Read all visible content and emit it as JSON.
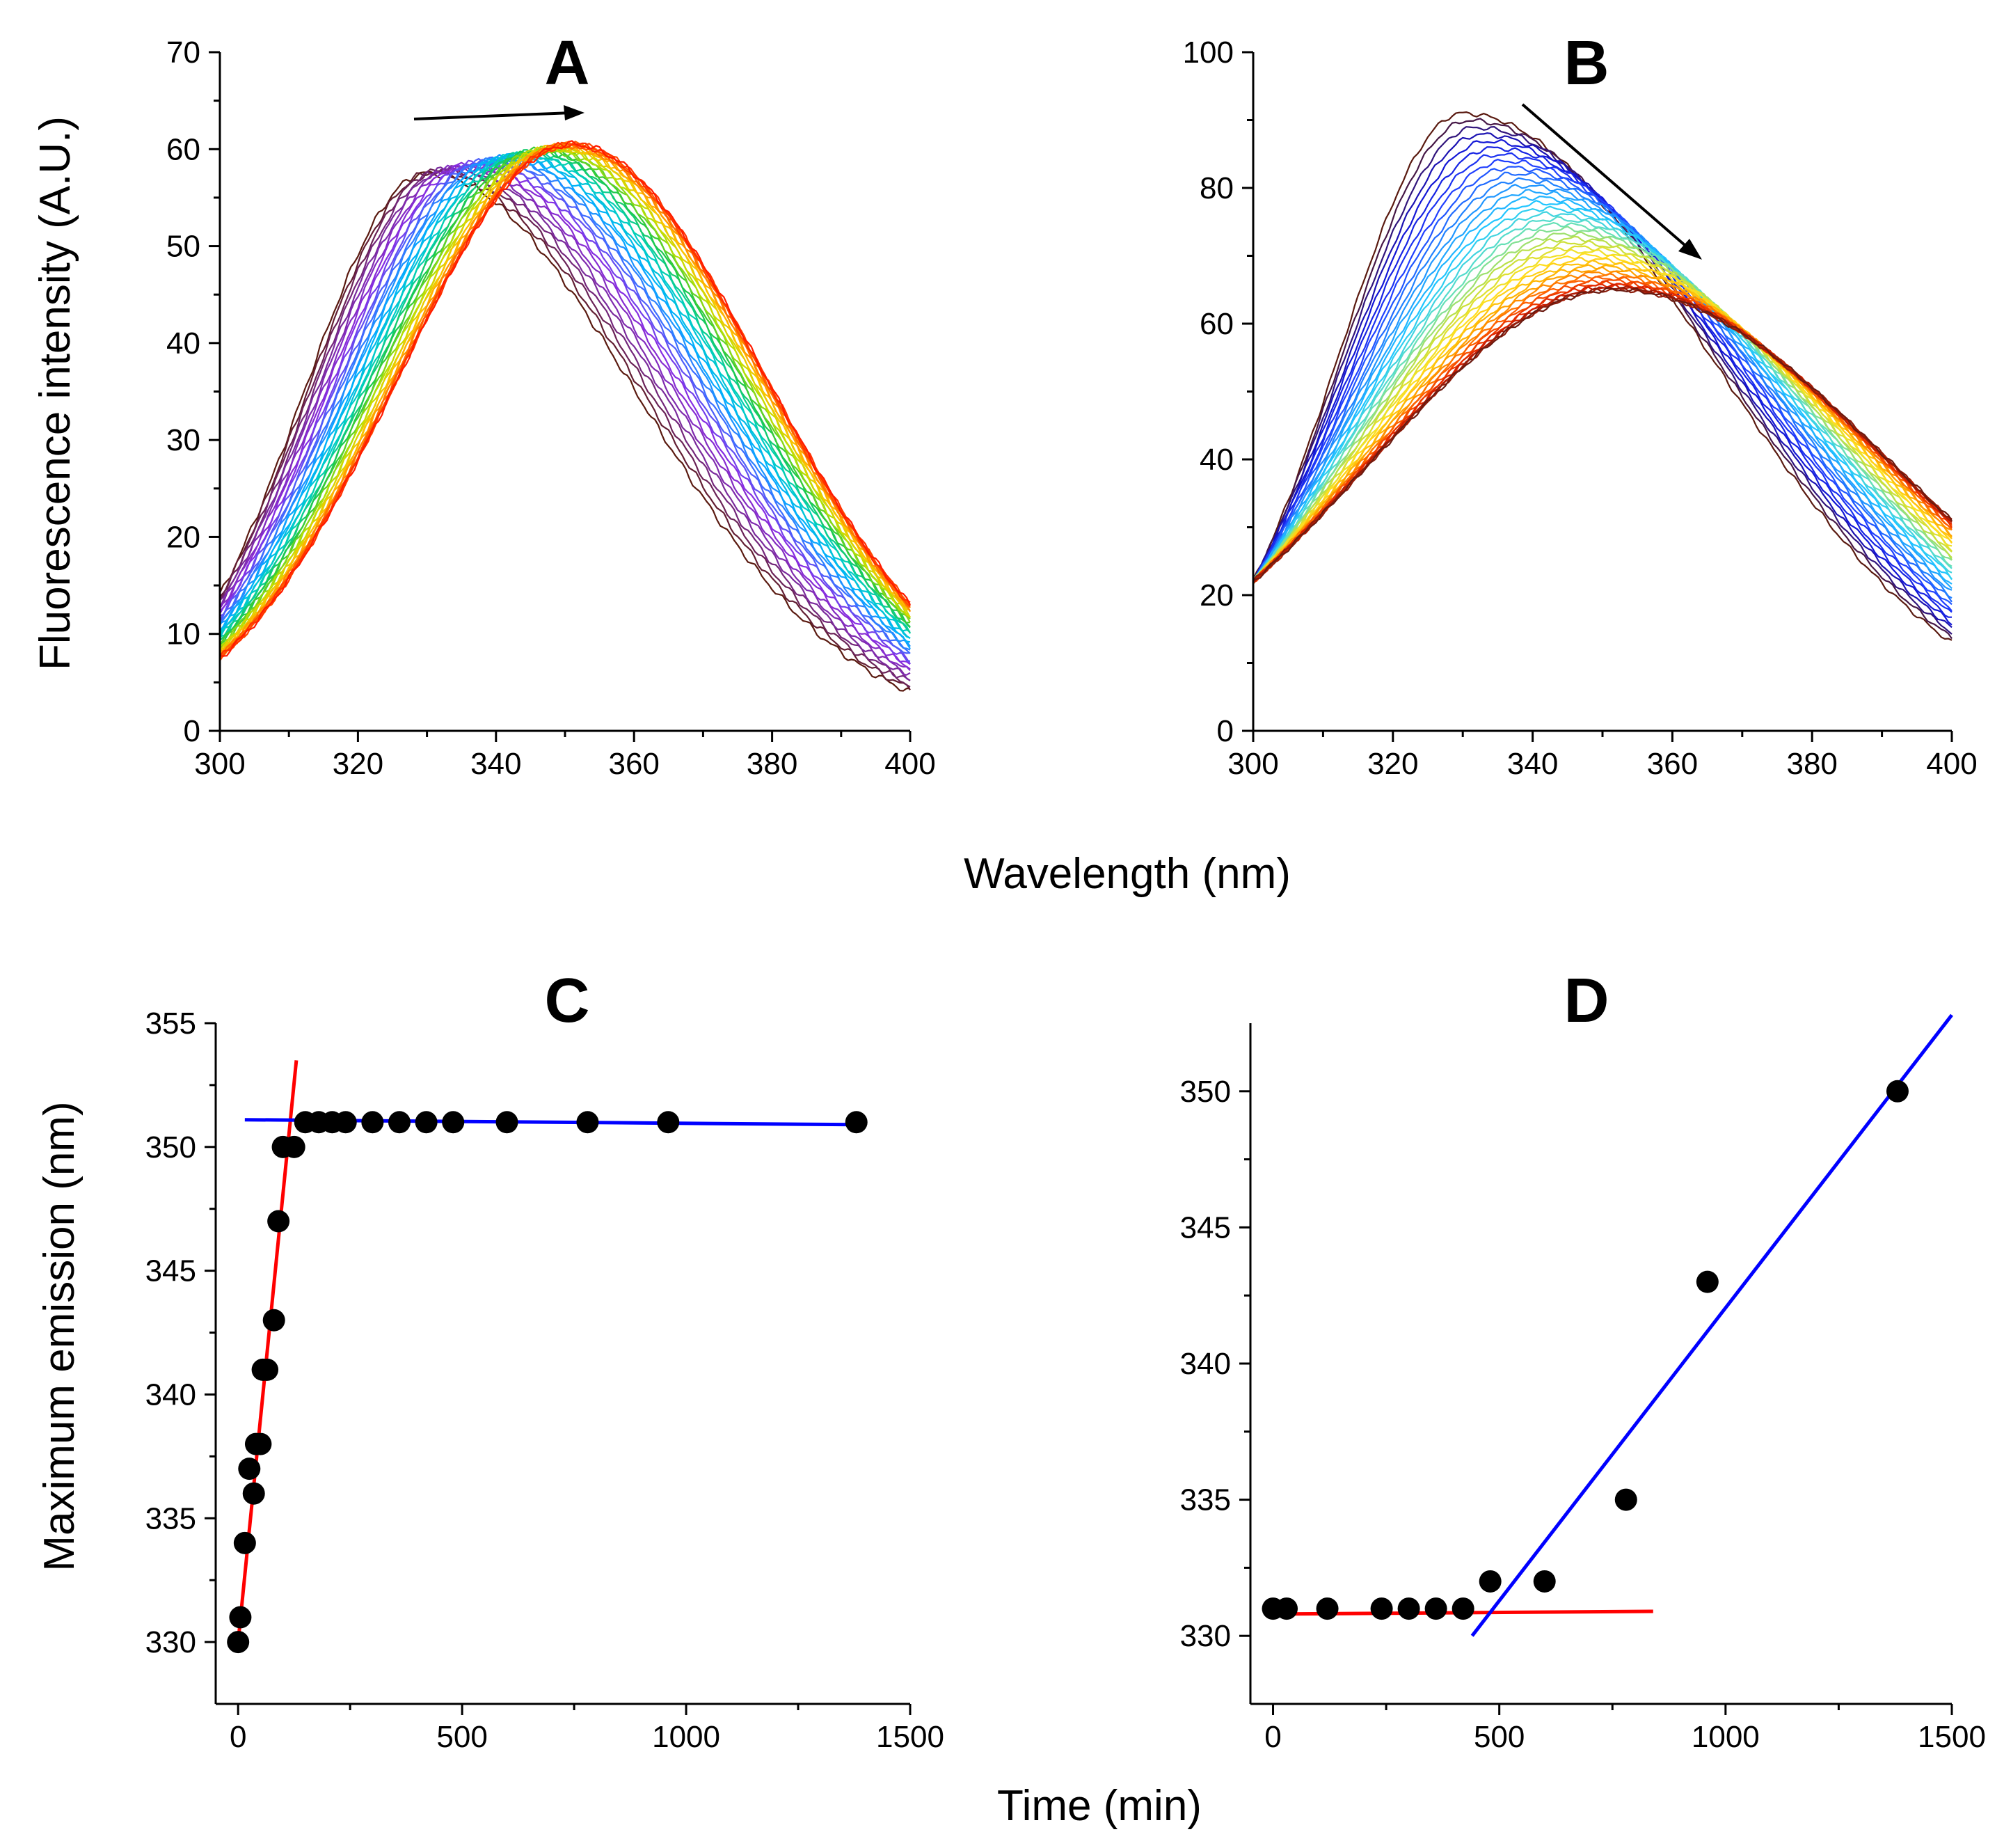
{
  "figure": {
    "shared_xlabel_top": "Wavelength (nm)",
    "shared_xlabel_bottom": "Time (min)"
  },
  "chart_data": [
    {
      "id": "A",
      "type": "line",
      "title": "A",
      "xlabel": "Wavelength (nm)",
      "ylabel": "Fluorescence intensity (A.U.)",
      "xlim": [
        300,
        400
      ],
      "ylim": [
        0,
        70
      ],
      "xticks": [
        300,
        320,
        340,
        360,
        380,
        400
      ],
      "yticks": [
        0,
        10,
        20,
        30,
        40,
        50,
        60,
        70
      ],
      "annotation": "arrow pointing toward longer wavelength (red shift)",
      "series_count": 40,
      "series_model": {
        "first": {
          "peak_nm": 330,
          "peak_value": 57.5,
          "color": "#5a1a10"
        },
        "last": {
          "peak_nm": 351,
          "peak_value": 60.5,
          "color": "#ff1a00"
        },
        "color_order": [
          "#5a1a10",
          "#7a2a9a",
          "#8a2be2",
          "#4169ff",
          "#00b0ff",
          "#00d0c0",
          "#20c840",
          "#c0e000",
          "#ffc000",
          "#ff7000",
          "#ff1a00"
        ],
        "value_at_300_first": 14,
        "value_at_300_last": 7.5,
        "value_at_400_first": 4,
        "value_at_400_last": 13
      }
    },
    {
      "id": "B",
      "type": "line",
      "title": "B",
      "xlabel": "Wavelength (nm)",
      "ylabel": "",
      "xlim": [
        300,
        400
      ],
      "ylim": [
        0,
        100
      ],
      "xticks": [
        300,
        320,
        340,
        360,
        380,
        400
      ],
      "yticks": [
        0,
        20,
        40,
        60,
        80,
        100
      ],
      "annotation": "arrow pointing down and toward longer wavelength (quenching and red shift)",
      "series_count": 40,
      "series_model": {
        "first": {
          "peak_nm": 330,
          "peak_value": 91,
          "color": "#5a1a10"
        },
        "last": {
          "peak_nm": 352,
          "peak_value": 65,
          "color": "#6a1a10"
        },
        "color_order": [
          "#5a1a10",
          "#1010d0",
          "#2040ff",
          "#2090ff",
          "#20c8ff",
          "#60e0c0",
          "#c0e040",
          "#ffe020",
          "#ffb000",
          "#ff6000",
          "#e02000",
          "#6a1a10"
        ],
        "value_at_300_first": 22,
        "value_at_300_last": 22,
        "value_at_400_first": 13,
        "value_at_400_last": 31
      }
    },
    {
      "id": "C",
      "type": "scatter",
      "title": "C",
      "xlabel": "Time (min)",
      "ylabel": "Maximum emission (nm)",
      "xlim": [
        -50,
        1500
      ],
      "ylim": [
        327.5,
        355
      ],
      "xticks": [
        0,
        500,
        1000,
        1500
      ],
      "yticks": [
        330,
        335,
        340,
        345,
        350,
        355
      ],
      "points": [
        [
          0,
          330
        ],
        [
          5,
          331
        ],
        [
          15,
          334
        ],
        [
          25,
          337
        ],
        [
          35,
          336
        ],
        [
          40,
          338
        ],
        [
          50,
          338
        ],
        [
          55,
          341
        ],
        [
          65,
          341
        ],
        [
          80,
          343
        ],
        [
          90,
          347
        ],
        [
          100,
          350
        ],
        [
          125,
          350
        ],
        [
          150,
          351
        ],
        [
          180,
          351
        ],
        [
          210,
          351
        ],
        [
          240,
          351
        ],
        [
          300,
          351
        ],
        [
          360,
          351
        ],
        [
          420,
          351
        ],
        [
          480,
          351
        ],
        [
          600,
          351
        ],
        [
          780,
          351
        ],
        [
          960,
          351
        ],
        [
          1380,
          351
        ]
      ],
      "fit_lines": [
        {
          "name": "initial",
          "color": "#ff0000",
          "x": [
            0,
            130
          ],
          "y": [
            330,
            353.5
          ]
        },
        {
          "name": "plateau",
          "color": "#0000ff",
          "x": [
            15,
            1380
          ],
          "y": [
            351.1,
            350.9
          ]
        }
      ]
    },
    {
      "id": "D",
      "type": "scatter",
      "title": "D",
      "xlabel": "Time (min)",
      "ylabel": "",
      "xlim": [
        -50,
        1500
      ],
      "ylim": [
        327.5,
        352.5
      ],
      "xticks": [
        0,
        500,
        1000,
        1500
      ],
      "yticks": [
        330,
        335,
        340,
        345,
        350
      ],
      "points": [
        [
          0,
          331
        ],
        [
          30,
          331
        ],
        [
          120,
          331
        ],
        [
          240,
          331
        ],
        [
          300,
          331
        ],
        [
          360,
          331
        ],
        [
          420,
          331
        ],
        [
          480,
          332
        ],
        [
          600,
          332
        ],
        [
          780,
          335
        ],
        [
          960,
          343
        ],
        [
          1380,
          350
        ]
      ],
      "fit_lines": [
        {
          "name": "lag",
          "color": "#ff0000",
          "x": [
            0,
            840
          ],
          "y": [
            330.8,
            330.9
          ]
        },
        {
          "name": "growth",
          "color": "#0000ff",
          "x": [
            440,
            1500
          ],
          "y": [
            330,
            352.8
          ]
        }
      ]
    }
  ]
}
